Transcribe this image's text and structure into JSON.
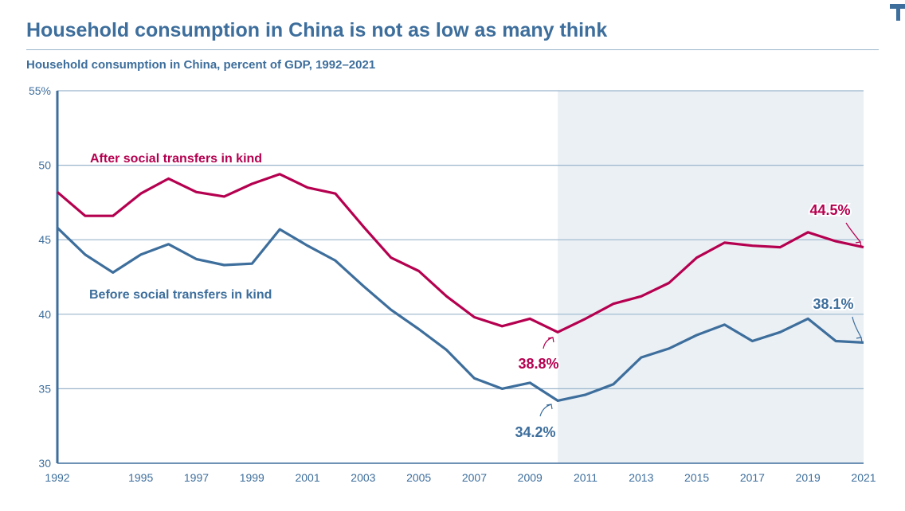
{
  "title": "Household consumption in China is not as low as many think",
  "subtitle": "Household consumption in China, percent of GDP, 1992–2021",
  "colors": {
    "blue": "#3d6e9c",
    "red": "#b5004f",
    "grid": "#9ab5cc",
    "shade": "#ebf0f5"
  },
  "chart_data": {
    "type": "line",
    "title": "Household consumption in China is not as low as many think",
    "subtitle": "Household consumption in China, percent of GDP, 1992–2021",
    "xlabel": "",
    "ylabel": "percent of GDP",
    "xlim": [
      1992,
      2021
    ],
    "ylim": [
      30,
      55
    ],
    "y_ticks": [
      {
        "v": 30,
        "label": "30"
      },
      {
        "v": 35,
        "label": "35"
      },
      {
        "v": 40,
        "label": "40"
      },
      {
        "v": 45,
        "label": "45"
      },
      {
        "v": 50,
        "label": "50"
      },
      {
        "v": 55,
        "label": "55%"
      }
    ],
    "x_ticks": [
      1992,
      1995,
      1997,
      1999,
      2001,
      2003,
      2005,
      2007,
      2009,
      2011,
      2013,
      2015,
      2017,
      2019,
      2021
    ],
    "shaded_range": [
      2010,
      2021
    ],
    "grid": true,
    "x": [
      1992,
      1993,
      1994,
      1995,
      1996,
      1997,
      1998,
      1999,
      2000,
      2001,
      2002,
      2003,
      2004,
      2005,
      2006,
      2007,
      2008,
      2009,
      2010,
      2011,
      2012,
      2013,
      2014,
      2015,
      2016,
      2017,
      2018,
      2019,
      2020,
      2021
    ],
    "series": [
      {
        "name": "After social transfers in kind",
        "color": "#b5004f",
        "values": [
          48.2,
          46.6,
          46.6,
          48.1,
          49.1,
          48.2,
          47.9,
          48.75,
          49.4,
          48.5,
          48.1,
          45.9,
          43.8,
          42.9,
          41.2,
          39.8,
          39.2,
          39.7,
          38.8,
          39.7,
          40.7,
          41.2,
          42.1,
          43.8,
          44.8,
          44.6,
          44.5,
          45.5,
          44.9,
          44.5
        ]
      },
      {
        "name": "Before social transfers in kind",
        "color": "#3d6e9c",
        "values": [
          45.8,
          44.0,
          42.8,
          44.0,
          44.7,
          43.7,
          43.3,
          43.4,
          45.7,
          44.6,
          43.6,
          41.9,
          40.3,
          39.0,
          37.6,
          35.7,
          35.0,
          35.4,
          34.2,
          34.6,
          35.3,
          37.1,
          37.7,
          38.6,
          39.3,
          38.2,
          38.8,
          39.7,
          38.2,
          38.1
        ]
      }
    ],
    "annotations": [
      {
        "text": "38.8%",
        "series": 0,
        "x": 2010
      },
      {
        "text": "34.2%",
        "series": 1,
        "x": 2010
      },
      {
        "text": "44.5%",
        "series": 0,
        "x": 2021
      },
      {
        "text": "38.1%",
        "series": 1,
        "x": 2021
      }
    ]
  }
}
